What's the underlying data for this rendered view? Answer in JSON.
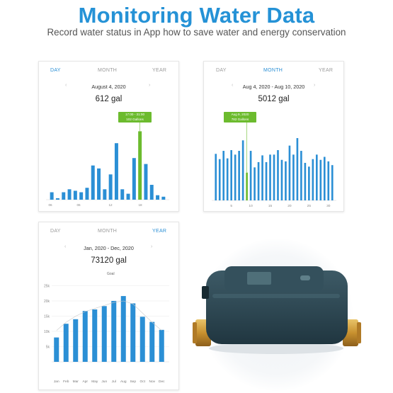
{
  "header": {
    "title": "Monitoring Water Data",
    "subtitle": "Record water status in App how to save water and energy conservation"
  },
  "colors": {
    "accent": "#2592d6",
    "bar": "#2b8fd5",
    "highlight": "#6cbb2e"
  },
  "icons": {
    "prev": "chevron-left-icon",
    "next": "chevron-right-icon"
  },
  "arrows": {
    "prev": "‹",
    "next": "›"
  },
  "cards": {
    "day": {
      "tabs": [
        "DAY",
        "MONTH",
        "YEAR"
      ],
      "active_tab": "DAY",
      "period": "August 4, 2020",
      "total": "612 gal",
      "tooltip": {
        "time": "17:00 - 31:00",
        "value": "102 Gallons"
      }
    },
    "month": {
      "tabs": [
        "DAY",
        "MONTH",
        "YEAR"
      ],
      "active_tab": "MONTH",
      "period": "Aug 4, 2020 - Aug 10, 2020",
      "total": "5012 gal",
      "tooltip": {
        "date": "Aug 9, 2020",
        "value": "782 Gallons"
      }
    },
    "year": {
      "tabs": [
        "DAY",
        "MONTH",
        "YEAR"
      ],
      "active_tab": "YEAR",
      "period": "Jan, 2020 - Dec, 2020",
      "total": "73120 gal",
      "goal_label": "Goal"
    }
  },
  "chart_data": [
    {
      "type": "bar",
      "x_tick_labels": [
        "06",
        "06",
        "12",
        "18"
      ],
      "values": [
        5,
        1,
        5,
        7,
        6,
        5,
        8,
        23,
        21,
        7,
        17,
        38,
        7,
        4,
        28,
        46,
        24,
        10,
        3,
        2
      ],
      "highlight_index": 15,
      "ylim": [
        0,
        50
      ]
    },
    {
      "type": "bar",
      "x_tick_labels": [
        "5",
        "10",
        "15",
        "20",
        "25",
        "30"
      ],
      "x": [
        1,
        2,
        3,
        4,
        5,
        6,
        7,
        8,
        9,
        10,
        11,
        12,
        13,
        14,
        15,
        16,
        17,
        18,
        19,
        20,
        21,
        22,
        23,
        24,
        25,
        26,
        27,
        28,
        29,
        30,
        31
      ],
      "values": [
        62,
        55,
        66,
        56,
        67,
        61,
        66,
        80,
        37,
        66,
        44,
        51,
        60,
        51,
        61,
        61,
        67,
        54,
        52,
        73,
        61,
        83,
        66,
        50,
        45,
        55,
        61,
        54,
        58,
        52,
        47
      ],
      "highlight_index": 8,
      "ylim": [
        0,
        100
      ]
    },
    {
      "type": "bar",
      "categories": [
        "Jan",
        "Feb",
        "Mar",
        "Apr",
        "May",
        "Jun",
        "Jul",
        "Aug",
        "Sep",
        "Oct",
        "Nov",
        "Dec"
      ],
      "values": [
        8000,
        12500,
        14000,
        16700,
        17200,
        18300,
        20000,
        21600,
        19200,
        14800,
        13100,
        10500
      ],
      "y_tick_labels": [
        "5k",
        "10k",
        "15k",
        "20k",
        "25k"
      ],
      "y_ticks": [
        5000,
        10000,
        15000,
        20000,
        25000
      ],
      "ylim": [
        0,
        26500
      ],
      "goal_curve": [
        10300,
        13000,
        15000,
        16500,
        17500,
        18500,
        19500,
        20000,
        19000,
        16000,
        13000,
        10300
      ]
    }
  ]
}
